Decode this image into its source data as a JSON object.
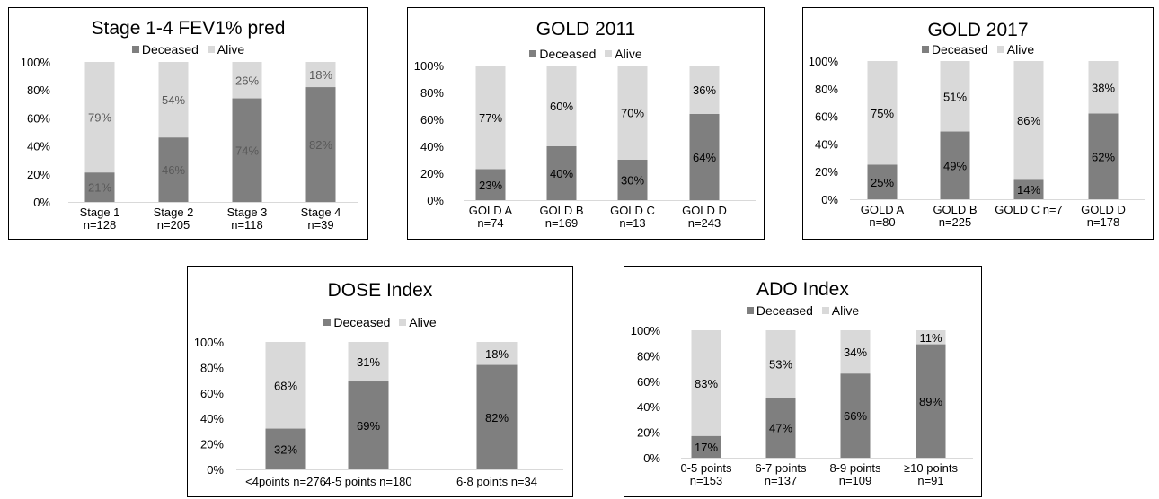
{
  "colors": {
    "deceased": "#7f7f7f",
    "alive": "#d9d9d9",
    "axis": "#d9d9d9",
    "text": "#000000"
  },
  "chart_data": [
    {
      "type": "bar",
      "stacked": true,
      "percent": true,
      "title": "Stage 1-4 FEV1% pred",
      "legend": [
        "Deceased",
        "Alive"
      ],
      "legend_position": "top",
      "yticks": [
        "0%",
        "20%",
        "40%",
        "60%",
        "80%",
        "100%"
      ],
      "ylim": [
        0,
        100
      ],
      "categories": [
        [
          "Stage 1",
          "n=128"
        ],
        [
          "Stage 2",
          "n=205"
        ],
        [
          "Stage 3",
          "n=118"
        ],
        [
          "Stage 4",
          "n=39"
        ]
      ],
      "series": [
        {
          "name": "Deceased",
          "values": [
            21,
            46,
            74,
            82
          ],
          "labels": [
            "21%",
            "46%",
            "74%",
            "82%"
          ]
        },
        {
          "name": "Alive",
          "values": [
            79,
            54,
            26,
            18
          ],
          "labels": [
            "79%",
            "54%",
            "26%",
            "18%"
          ]
        }
      ],
      "grid": false
    },
    {
      "type": "bar",
      "stacked": true,
      "percent": true,
      "title": "GOLD 2011",
      "legend": [
        "Deceased",
        "Alive"
      ],
      "legend_position": "top",
      "yticks": [
        "0%",
        "20%",
        "40%",
        "60%",
        "80%",
        "100%"
      ],
      "ylim": [
        0,
        100
      ],
      "categories": [
        [
          "GOLD A",
          "n=74"
        ],
        [
          "GOLD B",
          "n=169"
        ],
        [
          "GOLD C",
          "n=13"
        ],
        [
          "GOLD D",
          "n=243"
        ]
      ],
      "series": [
        {
          "name": "Deceased",
          "values": [
            23,
            40,
            30,
            64
          ],
          "labels": [
            "23%",
            "40%",
            "30%",
            "64%"
          ]
        },
        {
          "name": "Alive",
          "values": [
            77,
            60,
            70,
            36
          ],
          "labels": [
            "77%",
            "60%",
            "70%",
            "36%"
          ]
        }
      ],
      "grid": false
    },
    {
      "type": "bar",
      "stacked": true,
      "percent": true,
      "title": "GOLD 2017",
      "legend": [
        "Deceased",
        "Alive"
      ],
      "legend_position": "top",
      "yticks": [
        "0%",
        "20%",
        "40%",
        "60%",
        "80%",
        "100%"
      ],
      "ylim": [
        0,
        100
      ],
      "categories": [
        [
          "GOLD A",
          "n=80"
        ],
        [
          "GOLD B",
          "n=225"
        ],
        [
          "GOLD C n=7"
        ],
        [
          "GOLD D",
          "n=178"
        ]
      ],
      "series": [
        {
          "name": "Deceased",
          "values": [
            25,
            49,
            14,
            62
          ],
          "labels": [
            "25%",
            "49%",
            "14%",
            "62%"
          ]
        },
        {
          "name": "Alive",
          "values": [
            75,
            51,
            86,
            38
          ],
          "labels": [
            "75%",
            "51%",
            "86%",
            "38%"
          ]
        }
      ],
      "grid": false
    },
    {
      "type": "bar",
      "stacked": true,
      "percent": true,
      "title": "DOSE Index",
      "legend": [
        "Deceased",
        "Alive"
      ],
      "legend_position": "top",
      "yticks": [
        "0%",
        "20%",
        "40%",
        "60%",
        "80%",
        "100%"
      ],
      "ylim": [
        0,
        100
      ],
      "categories": [
        [
          "<4points n=276"
        ],
        [
          "4-5 points n=180"
        ],
        [
          "6-8 points n=34"
        ]
      ],
      "series": [
        {
          "name": "Deceased",
          "values": [
            32,
            69,
            82
          ],
          "labels": [
            "32%",
            "69%",
            "82%"
          ]
        },
        {
          "name": "Alive",
          "values": [
            68,
            31,
            18
          ],
          "labels": [
            "68%",
            "31%",
            "18%"
          ]
        }
      ],
      "grid": false
    },
    {
      "type": "bar",
      "stacked": true,
      "percent": true,
      "title": "ADO Index",
      "legend": [
        "Deceased",
        "Alive"
      ],
      "legend_position": "top",
      "yticks": [
        "0%",
        "20%",
        "40%",
        "60%",
        "80%",
        "100%"
      ],
      "ylim": [
        0,
        100
      ],
      "categories": [
        [
          "0-5 points",
          "n=153"
        ],
        [
          "6-7 points",
          "n=137"
        ],
        [
          "8-9 points",
          "n=109"
        ],
        [
          "≥10 points",
          "n=91"
        ]
      ],
      "series": [
        {
          "name": "Deceased",
          "values": [
            17,
            47,
            66,
            89
          ],
          "labels": [
            "17%",
            "47%",
            "66%",
            "89%"
          ]
        },
        {
          "name": "Alive",
          "values": [
            83,
            53,
            34,
            11
          ],
          "labels": [
            "83%",
            "53%",
            "34%",
            "11%"
          ]
        }
      ],
      "grid": false
    }
  ]
}
